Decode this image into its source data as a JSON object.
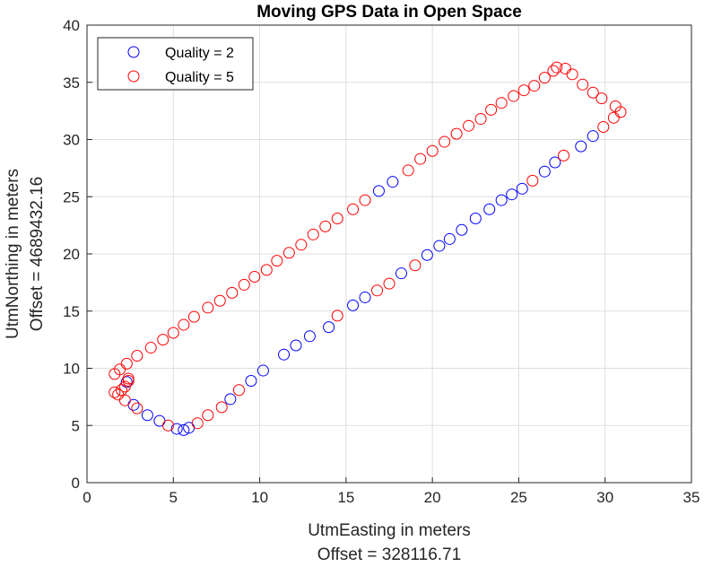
{
  "chart_data": {
    "type": "scatter",
    "title": "Moving GPS Data in Open Space",
    "xlabel": "UtmEasting in meters",
    "xlabel_offset": "Offset = 328116.71",
    "ylabel": "UtmNorthing in meters",
    "ylabel_offset": "Offset = 4689432.16",
    "xlim": [
      0,
      35
    ],
    "ylim": [
      0,
      40
    ],
    "xticks": [
      0,
      5,
      10,
      15,
      20,
      25,
      30,
      35
    ],
    "yticks": [
      0,
      5,
      10,
      15,
      20,
      25,
      30,
      35,
      40
    ],
    "grid": true,
    "legend_position": "top-left",
    "series": [
      {
        "name": "Quality = 2",
        "color": "#0000ff",
        "marker": "circle-open",
        "points": [
          [
            2.3,
            8.8
          ],
          [
            2.7,
            6.8
          ],
          [
            3.5,
            5.9
          ],
          [
            4.2,
            5.4
          ],
          [
            5.2,
            4.7
          ],
          [
            5.6,
            4.6
          ],
          [
            5.9,
            4.8
          ],
          [
            8.3,
            7.3
          ],
          [
            9.5,
            8.9
          ],
          [
            10.2,
            9.8
          ],
          [
            11.4,
            11.2
          ],
          [
            12.1,
            12.0
          ],
          [
            12.9,
            12.8
          ],
          [
            14.0,
            13.6
          ],
          [
            15.4,
            15.5
          ],
          [
            16.1,
            16.2
          ],
          [
            18.2,
            18.3
          ],
          [
            19.7,
            19.9
          ],
          [
            20.4,
            20.7
          ],
          [
            21.0,
            21.3
          ],
          [
            21.7,
            22.1
          ],
          [
            22.5,
            23.1
          ],
          [
            23.3,
            23.9
          ],
          [
            24.0,
            24.7
          ],
          [
            24.6,
            25.2
          ],
          [
            25.2,
            25.7
          ],
          [
            26.5,
            27.2
          ],
          [
            27.1,
            28.0
          ],
          [
            28.6,
            29.4
          ],
          [
            29.3,
            30.3
          ],
          [
            16.9,
            25.5
          ],
          [
            17.7,
            26.3
          ]
        ]
      },
      {
        "name": "Quality = 5",
        "color": "#ff0000",
        "marker": "circle-open",
        "points": [
          [
            1.6,
            9.5
          ],
          [
            1.9,
            9.9
          ],
          [
            2.3,
            10.4
          ],
          [
            1.6,
            7.9
          ],
          [
            1.8,
            7.7
          ],
          [
            2.2,
            8.4
          ],
          [
            2.4,
            8.9
          ],
          [
            2.4,
            9.1
          ],
          [
            2.0,
            8.1
          ],
          [
            2.2,
            7.2
          ],
          [
            2.9,
            6.5
          ],
          [
            4.7,
            5.0
          ],
          [
            6.4,
            5.2
          ],
          [
            7.0,
            5.9
          ],
          [
            7.8,
            6.6
          ],
          [
            8.8,
            8.1
          ],
          [
            14.5,
            14.6
          ],
          [
            16.8,
            16.8
          ],
          [
            17.5,
            17.4
          ],
          [
            19.0,
            19.0
          ],
          [
            25.8,
            26.4
          ],
          [
            27.6,
            28.6
          ],
          [
            29.9,
            31.1
          ],
          [
            30.5,
            31.9
          ],
          [
            30.6,
            32.9
          ],
          [
            30.9,
            32.4
          ],
          [
            2.9,
            11.1
          ],
          [
            3.7,
            11.8
          ],
          [
            4.4,
            12.5
          ],
          [
            5.0,
            13.1
          ],
          [
            5.6,
            13.8
          ],
          [
            6.2,
            14.5
          ],
          [
            7.0,
            15.3
          ],
          [
            7.7,
            15.9
          ],
          [
            8.4,
            16.6
          ],
          [
            9.1,
            17.3
          ],
          [
            9.7,
            18.0
          ],
          [
            10.4,
            18.6
          ],
          [
            11.0,
            19.4
          ],
          [
            11.7,
            20.1
          ],
          [
            12.4,
            20.8
          ],
          [
            13.1,
            21.7
          ],
          [
            13.8,
            22.4
          ],
          [
            14.5,
            23.1
          ],
          [
            15.4,
            23.9
          ],
          [
            16.1,
            24.7
          ],
          [
            18.6,
            27.3
          ],
          [
            19.3,
            28.3
          ],
          [
            20.0,
            29.0
          ],
          [
            20.7,
            29.8
          ],
          [
            21.4,
            30.5
          ],
          [
            22.1,
            31.2
          ],
          [
            22.8,
            31.8
          ],
          [
            23.4,
            32.6
          ],
          [
            24.0,
            33.2
          ],
          [
            24.7,
            33.8
          ],
          [
            25.3,
            34.3
          ],
          [
            25.9,
            34.7
          ],
          [
            26.5,
            35.4
          ],
          [
            27.0,
            36.0
          ],
          [
            27.2,
            36.3
          ],
          [
            27.7,
            36.2
          ],
          [
            28.1,
            35.7
          ],
          [
            28.7,
            34.8
          ],
          [
            29.3,
            34.1
          ],
          [
            29.8,
            33.6
          ]
        ]
      }
    ]
  }
}
